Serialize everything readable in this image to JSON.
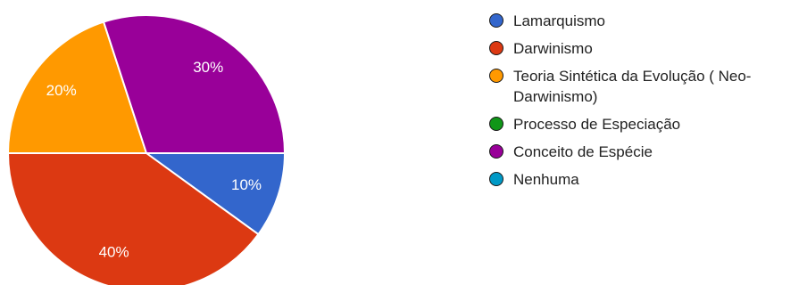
{
  "chart_data": {
    "type": "pie",
    "title": "",
    "legend_position": "right",
    "slices": [
      {
        "label": "Lamarquismo",
        "value": 10,
        "display": "10%",
        "color": "#3366cc"
      },
      {
        "label": "Darwinismo",
        "value": 40,
        "display": "40%",
        "color": "#dc3912"
      },
      {
        "label": "Teoria Sintética da Evolução ( Neo-Darwinismo)",
        "value": 20,
        "display": "20%",
        "color": "#ff9900"
      },
      {
        "label": "Processo de Especiação",
        "value": 0,
        "display": "",
        "color": "#109618"
      },
      {
        "label": "Conceito de Espécie",
        "value": 30,
        "display": "30%",
        "color": "#990099"
      },
      {
        "label": "Nenhuma",
        "value": 0,
        "display": "",
        "color": "#0099c6"
      }
    ]
  }
}
